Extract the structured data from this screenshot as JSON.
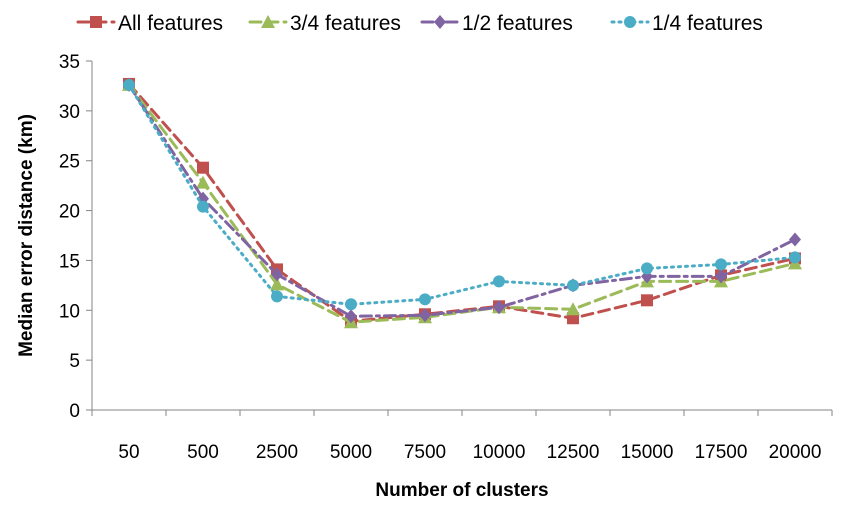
{
  "chart_data": {
    "type": "line",
    "title": "",
    "xlabel": "Number of clusters",
    "ylabel": "Median error distance (km)",
    "categories": [
      "50",
      "500",
      "2500",
      "5000",
      "7500",
      "10000",
      "12500",
      "15000",
      "17500",
      "20000"
    ],
    "ylim": [
      0,
      35
    ],
    "yticks": [
      0,
      5,
      10,
      15,
      20,
      25,
      30,
      35
    ],
    "grid": false,
    "legend_position": "top",
    "series": [
      {
        "name": "All features",
        "color": "#c0504d",
        "marker": "square",
        "dash": "dashed",
        "values": [
          32.7,
          24.3,
          14.1,
          8.9,
          9.6,
          10.4,
          9.2,
          11.0,
          13.5,
          15.2
        ]
      },
      {
        "name": "3/4 features",
        "color": "#9bbb59",
        "marker": "triangle",
        "dash": "dashed",
        "values": [
          32.6,
          22.8,
          12.6,
          8.8,
          9.3,
          10.3,
          10.1,
          12.9,
          12.9,
          14.7
        ]
      },
      {
        "name": "1/2 features",
        "color": "#8064a2",
        "marker": "diamond",
        "dash": "dashdot",
        "values": [
          32.6,
          21.2,
          13.6,
          9.4,
          9.5,
          10.3,
          12.5,
          13.4,
          13.4,
          17.1
        ]
      },
      {
        "name": "1/4 features",
        "color": "#4bacc6",
        "marker": "circle",
        "dash": "dotted",
        "values": [
          32.6,
          20.4,
          11.4,
          10.6,
          11.1,
          12.9,
          12.5,
          14.2,
          14.6,
          15.3
        ]
      }
    ]
  }
}
